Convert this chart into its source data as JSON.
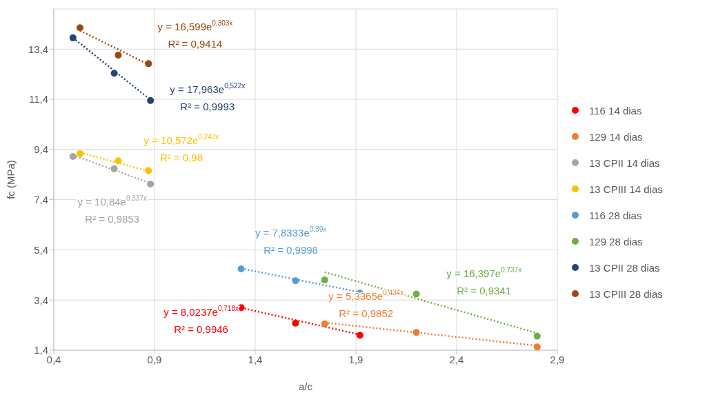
{
  "chart_data": {
    "type": "scatter",
    "xlabel": "a/c",
    "ylabel": "fc (MPa)",
    "xlim": [
      0.4,
      2.9
    ],
    "ylim": [
      1.4,
      15.0
    ],
    "xticks": [
      {
        "value": 0.4,
        "label": "0,4"
      },
      {
        "value": 0.9,
        "label": "0,9"
      },
      {
        "value": 1.4,
        "label": "1,4"
      },
      {
        "value": 1.9,
        "label": "1,9"
      },
      {
        "value": 2.4,
        "label": "2,4"
      },
      {
        "value": 2.9,
        "label": "2,9"
      }
    ],
    "yticks": [
      {
        "value": 1.4,
        "label": "1,4"
      },
      {
        "value": 3.4,
        "label": "3,4"
      },
      {
        "value": 5.4,
        "label": "5,4"
      },
      {
        "value": 7.4,
        "label": "7,4"
      },
      {
        "value": 9.4,
        "label": "9,4"
      },
      {
        "value": 11.4,
        "label": "11,4"
      },
      {
        "value": 13.4,
        "label": "13,4"
      }
    ],
    "grid": true,
    "legend": "right",
    "marker": "circle",
    "series": [
      {
        "name": "116 14 dias",
        "color": "#ff0000",
        "x": [
          1.33,
          1.6,
          1.92
        ],
        "values": [
          3.1,
          2.48,
          2.0
        ]
      },
      {
        "name": "129 14 dias",
        "color": "#ed7d31",
        "x": [
          1.745,
          2.2,
          2.8
        ],
        "values": [
          2.45,
          2.11,
          1.53
        ]
      },
      {
        "name": "13 CPII 14 dias",
        "color": "#a5a5a5",
        "x": [
          0.495,
          0.7,
          0.88
        ],
        "values": [
          9.12,
          8.63,
          8.02
        ]
      },
      {
        "name": "13 CPIII 14 dias",
        "color": "#ffc000",
        "x": [
          0.53,
          0.72,
          0.87
        ],
        "values": [
          9.24,
          8.95,
          8.56
        ]
      },
      {
        "name": "116 28 dias",
        "color": "#5b9bd5",
        "x": [
          1.33,
          1.6,
          1.92
        ],
        "values": [
          4.64,
          4.17,
          3.68
        ]
      },
      {
        "name": "129 28 dias",
        "color": "#70ad47",
        "x": [
          1.745,
          2.2,
          2.8
        ],
        "values": [
          4.2,
          3.64,
          1.96
        ]
      },
      {
        "name": "13 CPII 28 dias",
        "color": "#264478",
        "x": [
          0.495,
          0.7,
          0.88
        ],
        "values": [
          13.85,
          12.44,
          11.35
        ]
      },
      {
        "name": "13 CPIII 28 dias",
        "color": "#9e480e",
        "x": [
          0.53,
          0.72,
          0.87
        ],
        "values": [
          14.25,
          13.16,
          12.82
        ]
      },
      {
        "type": "line",
        "marker": "none",
        "line_style": "dotted",
        "color": "#ff0000",
        "x": [
          1.33,
          1.92
        ],
        "values": [
          3.09,
          2.02
        ]
      },
      {
        "type": "line",
        "marker": "none",
        "line_style": "dotted",
        "color": "#ed7d31",
        "x": [
          1.745,
          2.8
        ],
        "values": [
          2.5,
          1.58
        ]
      },
      {
        "type": "line",
        "marker": "none",
        "line_style": "dotted",
        "color": "#a5a5a5",
        "x": [
          0.495,
          0.88
        ],
        "values": [
          9.18,
          8.05
        ]
      },
      {
        "type": "line",
        "marker": "none",
        "line_style": "dotted",
        "color": "#ffc000",
        "x": [
          0.53,
          0.87
        ],
        "values": [
          9.28,
          8.54
        ]
      },
      {
        "type": "line",
        "marker": "none",
        "line_style": "dotted",
        "color": "#5b9bd5",
        "x": [
          1.33,
          1.92
        ],
        "values": [
          4.66,
          3.71
        ]
      },
      {
        "type": "line",
        "marker": "none",
        "line_style": "dotted",
        "color": "#70ad47",
        "x": [
          1.745,
          2.8
        ],
        "values": [
          4.51,
          2.08
        ]
      },
      {
        "type": "line",
        "marker": "none",
        "line_style": "dotted",
        "color": "#264478",
        "x": [
          0.495,
          0.88
        ],
        "values": [
          13.85,
          11.38
        ]
      },
      {
        "type": "line",
        "marker": "none",
        "line_style": "dotted",
        "color": "#9e480e",
        "x": [
          0.53,
          0.87
        ],
        "values": [
          14.14,
          12.79
        ]
      }
    ],
    "annotations": [
      "y = 8,0237e$^{0,718x}$",
      "R² = 0,9946",
      "y = 5,3365e$^{0,434x}$",
      "R² = 0,9852",
      "y = 10,84e$^{0,337x}$",
      "R² = 0,9853",
      "y = 10,572e$^{0,242x}$",
      "R² = 0,98",
      "y = 7,8333e$^{0,39x}$",
      "R² = 0,9998",
      "y = 16,397e$^{0,737x}$",
      "R² = 0,9341",
      "y = 17,963e$^{0,522x}$",
      "R² = 0,9993",
      "y = 16,599e$^{0,303x}$",
      "R² = 0,9414"
    ]
  }
}
